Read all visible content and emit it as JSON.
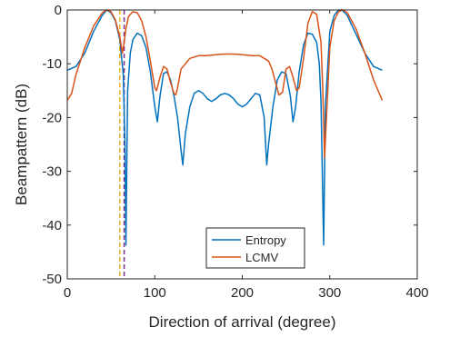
{
  "chart_data": {
    "type": "line",
    "xlabel": "Direction of arrival (degree)",
    "ylabel": "Beampattern (dB)",
    "xlim": [
      0,
      400
    ],
    "ylim": [
      -50,
      0
    ],
    "xticks": [
      0,
      100,
      200,
      300,
      400
    ],
    "yticks": [
      -50,
      -40,
      -30,
      -20,
      -10,
      0
    ],
    "xtick_labels": [
      "0",
      "100",
      "200",
      "300",
      "400"
    ],
    "ytick_labels": [
      "-50",
      "-40",
      "-30",
      "-20",
      "-10",
      "0"
    ],
    "grid": true,
    "legend_position": "lower-center",
    "series": [
      {
        "name": "Entropy",
        "color": "#0072BD",
        "x": [
          0,
          10,
          20,
          30,
          40,
          45,
          50,
          55,
          60,
          64,
          66,
          67,
          69,
          72,
          75,
          80,
          85,
          90,
          95,
          100,
          103,
          106,
          110,
          114,
          118,
          122,
          126,
          130,
          132,
          135,
          140,
          145,
          150,
          155,
          160,
          165,
          170,
          175,
          180,
          185,
          190,
          195,
          200,
          205,
          210,
          215,
          220,
          225,
          228,
          230,
          235,
          240,
          245,
          250,
          255,
          258,
          261,
          265,
          270,
          275,
          280,
          285,
          288,
          290,
          293,
          295,
          300,
          305,
          310,
          314,
          320,
          330,
          340,
          350,
          360
        ],
        "y": [
          -11.2,
          -10.5,
          -8.0,
          -4.0,
          -1.0,
          0.0,
          -0.5,
          -2.0,
          -5.5,
          -12.0,
          -25.0,
          -43.7,
          -15.0,
          -8.0,
          -5.5,
          -4.3,
          -4.8,
          -7.0,
          -11.5,
          -18.0,
          -20.8,
          -16.0,
          -11.8,
          -11.5,
          -13.0,
          -16.0,
          -20.0,
          -26.0,
          -28.8,
          -23.0,
          -18.0,
          -15.5,
          -15.0,
          -15.5,
          -16.5,
          -17.0,
          -16.5,
          -15.8,
          -15.5,
          -15.8,
          -16.5,
          -17.5,
          -18.0,
          -17.5,
          -16.5,
          -15.5,
          -15.8,
          -20.0,
          -28.8,
          -25.0,
          -18.0,
          -13.0,
          -11.5,
          -11.8,
          -16.0,
          -20.8,
          -18.0,
          -11.5,
          -6.5,
          -4.3,
          -4.5,
          -6.0,
          -10.0,
          -17.0,
          -43.7,
          -18.0,
          -4.0,
          -1.0,
          0.0,
          0.0,
          -1.0,
          -4.5,
          -8.0,
          -10.5,
          -11.2
        ]
      },
      {
        "name": "LCMV",
        "color": "#D95319",
        "x": [
          0,
          5,
          10,
          20,
          30,
          40,
          45,
          50,
          55,
          60,
          63,
          65,
          67,
          70,
          75,
          80,
          85,
          90,
          95,
          100,
          102,
          106,
          110,
          114,
          118,
          122,
          124,
          126,
          130,
          140,
          150,
          160,
          170,
          180,
          190,
          200,
          210,
          220,
          230,
          234,
          238,
          242,
          246,
          250,
          254,
          258,
          262,
          265,
          270,
          275,
          280,
          285,
          290,
          292,
          294,
          300,
          305,
          310,
          315,
          320,
          330,
          340,
          350,
          360
        ],
        "y": [
          -16.8,
          -15.5,
          -12.0,
          -7.0,
          -3.0,
          -0.5,
          0.0,
          -0.3,
          -1.8,
          -5.0,
          -8.0,
          -6.0,
          -3.5,
          -1.2,
          -0.3,
          -0.5,
          -2.0,
          -5.0,
          -9.5,
          -14.5,
          -15.0,
          -12.5,
          -10.5,
          -11.0,
          -13.5,
          -15.5,
          -15.8,
          -14.5,
          -11.0,
          -9.0,
          -8.5,
          -8.5,
          -8.3,
          -8.2,
          -8.2,
          -8.3,
          -8.5,
          -8.5,
          -9.5,
          -11.0,
          -13.5,
          -15.8,
          -15.3,
          -11.0,
          -10.5,
          -12.5,
          -15.0,
          -14.5,
          -9.0,
          -2.5,
          -0.3,
          -0.8,
          -6.0,
          -15.0,
          -27.5,
          -7.0,
          -2.0,
          -0.3,
          0.0,
          -0.5,
          -3.5,
          -8.0,
          -13.0,
          -16.8
        ]
      }
    ],
    "reference_lines": [
      {
        "x": 60,
        "color": "#EDB120",
        "style": "dashed"
      },
      {
        "x": 65,
        "color": "#7E2F8E",
        "style": "dashed"
      }
    ]
  }
}
